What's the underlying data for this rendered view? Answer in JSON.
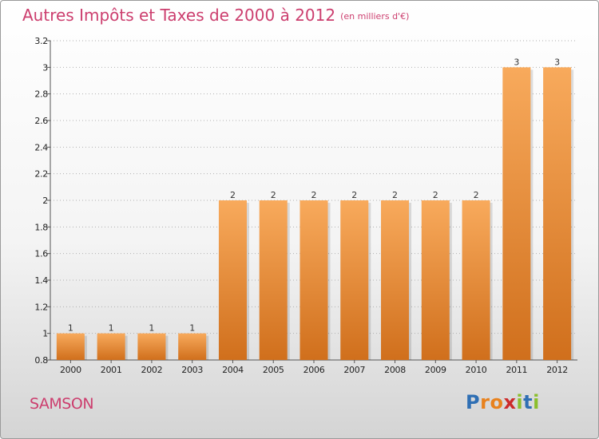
{
  "header": {
    "title": "Autres Impôts et Taxes de 2000 à 2012",
    "unit": "(en milliers d'€)"
  },
  "footer": {
    "commune": "SAMSON",
    "logo_letters": [
      "P",
      "r",
      "o",
      "x",
      "i",
      "t",
      "i"
    ],
    "logo_colors": [
      "#2f6fb4",
      "#e8821e",
      "#e8821e",
      "#cc2b2b",
      "#8bbf2c",
      "#2f6fb4",
      "#8bbf2c"
    ]
  },
  "colors": {
    "bar_light": "#f8aa5c",
    "bar_dark": "#d06f1c",
    "title": "#cc3e6e",
    "grid": "#b0b0b0"
  },
  "chart_data": {
    "type": "bar",
    "categories": [
      "2000",
      "2001",
      "2002",
      "2003",
      "2004",
      "2005",
      "2006",
      "2007",
      "2008",
      "2009",
      "2010",
      "2011",
      "2012"
    ],
    "values": [
      1,
      1,
      1,
      1,
      2,
      2,
      2,
      2,
      2,
      2,
      2,
      3,
      3
    ],
    "value_labels": [
      "1",
      "1",
      "1",
      "1",
      "2",
      "2",
      "2",
      "2",
      "2",
      "2",
      "2",
      "3",
      "3"
    ],
    "yticks": [
      0.8,
      1,
      1.2,
      1.4,
      1.6,
      1.8,
      2,
      2.2,
      2.4,
      2.6,
      2.8,
      3,
      3.2
    ],
    "ytick_labels": [
      "0.8",
      "1",
      "1.2",
      "1.4",
      "1.6",
      "1.8",
      "2",
      "2.2",
      "2.4",
      "2.6",
      "2.8",
      "3",
      "3.2"
    ],
    "ylim": [
      0.8,
      3.2
    ],
    "title": "Autres Impôts et Taxes de 2000 à 2012",
    "xlabel": "",
    "ylabel": "",
    "grid": true
  }
}
